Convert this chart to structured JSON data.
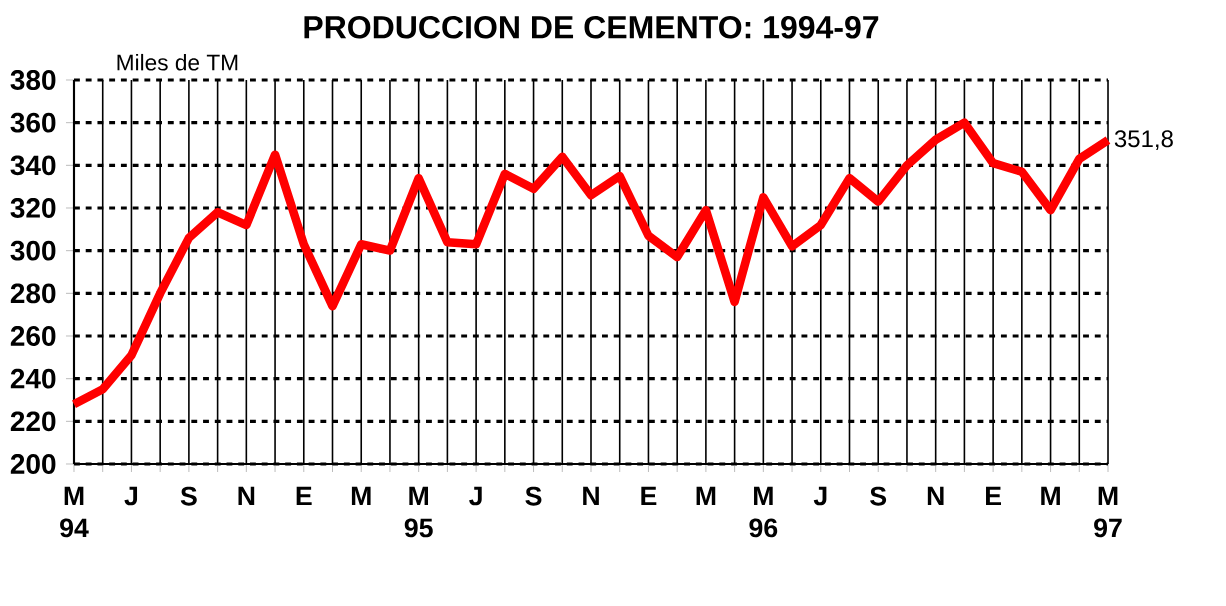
{
  "chart_data": {
    "type": "line",
    "title": "PRODUCCION DE CEMENTO: 1994-97",
    "ylabel": "Miles de TM",
    "categories": [
      "M 94",
      null,
      "J",
      null,
      "S",
      null,
      "N",
      null,
      "E",
      null,
      "M",
      null,
      "M 95",
      null,
      "J",
      null,
      "S",
      null,
      "N",
      null,
      "E",
      null,
      "M",
      null,
      "M 96",
      null,
      "J",
      null,
      "S",
      null,
      "N",
      null,
      "E",
      null,
      "M",
      null,
      "M 97"
    ],
    "series": [
      {
        "color": "#ff0000",
        "values": [
          228,
          235,
          251,
          280,
          306,
          318,
          312,
          345,
          303,
          274,
          303,
          300,
          334,
          304,
          303,
          336,
          329,
          344,
          326,
          335,
          307,
          297,
          319,
          276,
          325,
          302,
          312,
          334,
          323,
          340,
          352,
          360,
          341,
          337,
          319,
          343,
          351.8
        ]
      }
    ],
    "ylim": [
      200,
      380
    ],
    "yticks": [
      200,
      220,
      240,
      260,
      280,
      300,
      320,
      340,
      360,
      380
    ],
    "grid": true,
    "annotations": [
      {
        "text": "351,8",
        "x": "M 97",
        "y": 351.8
      }
    ]
  }
}
